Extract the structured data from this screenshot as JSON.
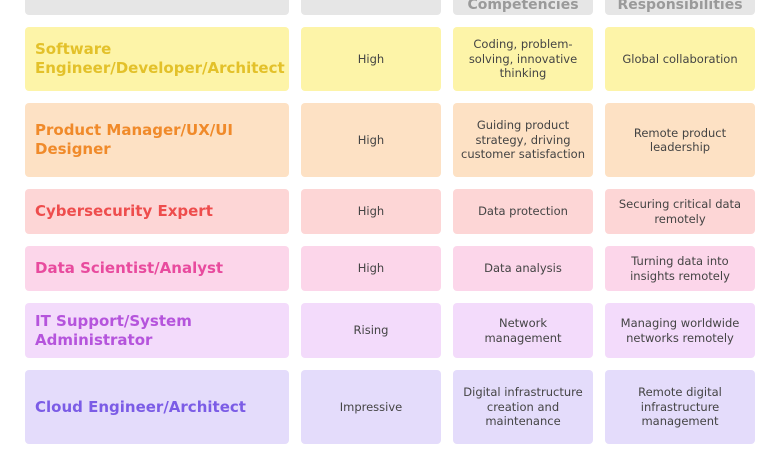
{
  "header": {
    "competencies": "Competencies",
    "responsibilities": "Responsibilities"
  },
  "rows": [
    {
      "role": "Software Engineer/Developer/Architect",
      "demand": "High",
      "competencies": "Coding, problem-solving, innovative thinking",
      "responsibilities": "Global collaboration",
      "bg": "#fdf4a8",
      "fg": "#e3c12a"
    },
    {
      "role": "Product Manager/UX/UI Designer",
      "demand": "High",
      "competencies": "Guiding product strategy, driving customer satisfaction",
      "responsibilities": "Remote product leadership",
      "bg": "#fde1c4",
      "fg": "#f08a2a"
    },
    {
      "role": "Cybersecurity Expert",
      "demand": "High",
      "competencies": "Data protection",
      "responsibilities": "Securing critical data remotely",
      "bg": "#fdd6d6",
      "fg": "#ee4d4d"
    },
    {
      "role": "Data Scientist/Analyst",
      "demand": "High",
      "competencies": "Data analysis",
      "responsibilities": "Turning data into insights remotely",
      "bg": "#fcd6ea",
      "fg": "#e84b9e"
    },
    {
      "role": "IT Support/System Administrator",
      "demand": "Rising",
      "competencies": "Network management",
      "responsibilities": "Managing worldwide networks remotely",
      "bg": "#f3dbfb",
      "fg": "#b554dc"
    },
    {
      "role": "Cloud Engineer/Architect",
      "demand": "Impressive",
      "competencies": "Digital infrastructure creation and maintenance",
      "responsibilities": "Remote digital infrastructure management",
      "bg": "#e4dcfb",
      "fg": "#7b5ce6"
    }
  ]
}
